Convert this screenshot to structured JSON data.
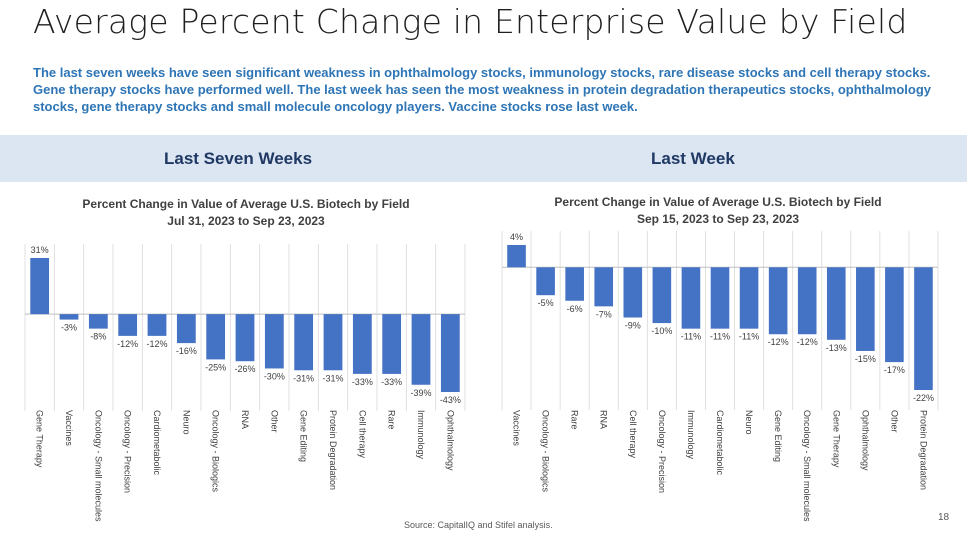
{
  "slide": {
    "title": "Average Percent Change in Enterprise Value by Field",
    "subtitle": "The last seven weeks have seen significant weakness in ophthalmology stocks, immunology stocks, rare disease stocks and cell therapy stocks. Gene therapy stocks have performed well. The last week has seen the most weakness in protein degradation therapeutics stocks, ophthalmology stocks, gene therapy stocks and small molecule oncology players. Vaccine stocks rose last week.",
    "band_left": "Last Seven Weeks",
    "band_right": "Last Week",
    "source": "Source: CapitalIQ and Stifel analysis.",
    "page_number": "18"
  },
  "chart_data": [
    {
      "type": "bar",
      "title": "Percent Change in Value of Average U.S. Biotech by Field",
      "subtitle": "Jul 31, 2023 to Sep 23, 2023",
      "categories": [
        "Gene Therapy",
        "Vaccines",
        "Oncology - Small molecules",
        "Oncology - Precision",
        "Cardiometabolic",
        "Neuro",
        "Oncology - Biologics",
        "RNA",
        "Other",
        "Gene Editing",
        "Protein Degradation",
        "Cell therapy",
        "Rare",
        "Immunology",
        "Ophthalmology"
      ],
      "values": [
        31,
        -3,
        -8,
        -12,
        -12,
        -16,
        -25,
        -26,
        -30,
        -31,
        -31,
        -33,
        -33,
        -39,
        -43
      ],
      "data_labels": [
        "31%",
        "-3%",
        "-8%",
        "-12%",
        "-12%",
        "-16%",
        "-25%",
        "-26%",
        "-30%",
        "-31%",
        "-31%",
        "-33%",
        "-33%",
        "-39%",
        "-43%"
      ],
      "bar_color": "#4472c4",
      "grid": true,
      "legend": "none"
    },
    {
      "type": "bar",
      "title": "Percent Change in Value of Average U.S. Biotech by Field",
      "subtitle": "Sep 15, 2023 to Sep 23, 2023",
      "categories": [
        "Vaccines",
        "Oncology - Biologics",
        "Rare",
        "RNA",
        "Cell therapy",
        "Oncology - Precision",
        "Immunology",
        "Cardiometabolic",
        "Neuro",
        "Gene Editing",
        "Oncology - Small molecules",
        "Gene Therapy",
        "Ophthalmology",
        "Other",
        "Protein Degradation"
      ],
      "values": [
        4,
        -5,
        -6,
        -7,
        -9,
        -10,
        -11,
        -11,
        -11,
        -12,
        -12,
        -13,
        -15,
        -17,
        -22
      ],
      "data_labels": [
        "4%",
        "-5%",
        "-6%",
        "-7%",
        "-9%",
        "-10%",
        "-11%",
        "-11%",
        "-11%",
        "-12%",
        "-12%",
        "-13%",
        "-15%",
        "-17%",
        "-22%"
      ],
      "bar_color": "#4472c4",
      "grid": true,
      "legend": "none"
    }
  ]
}
